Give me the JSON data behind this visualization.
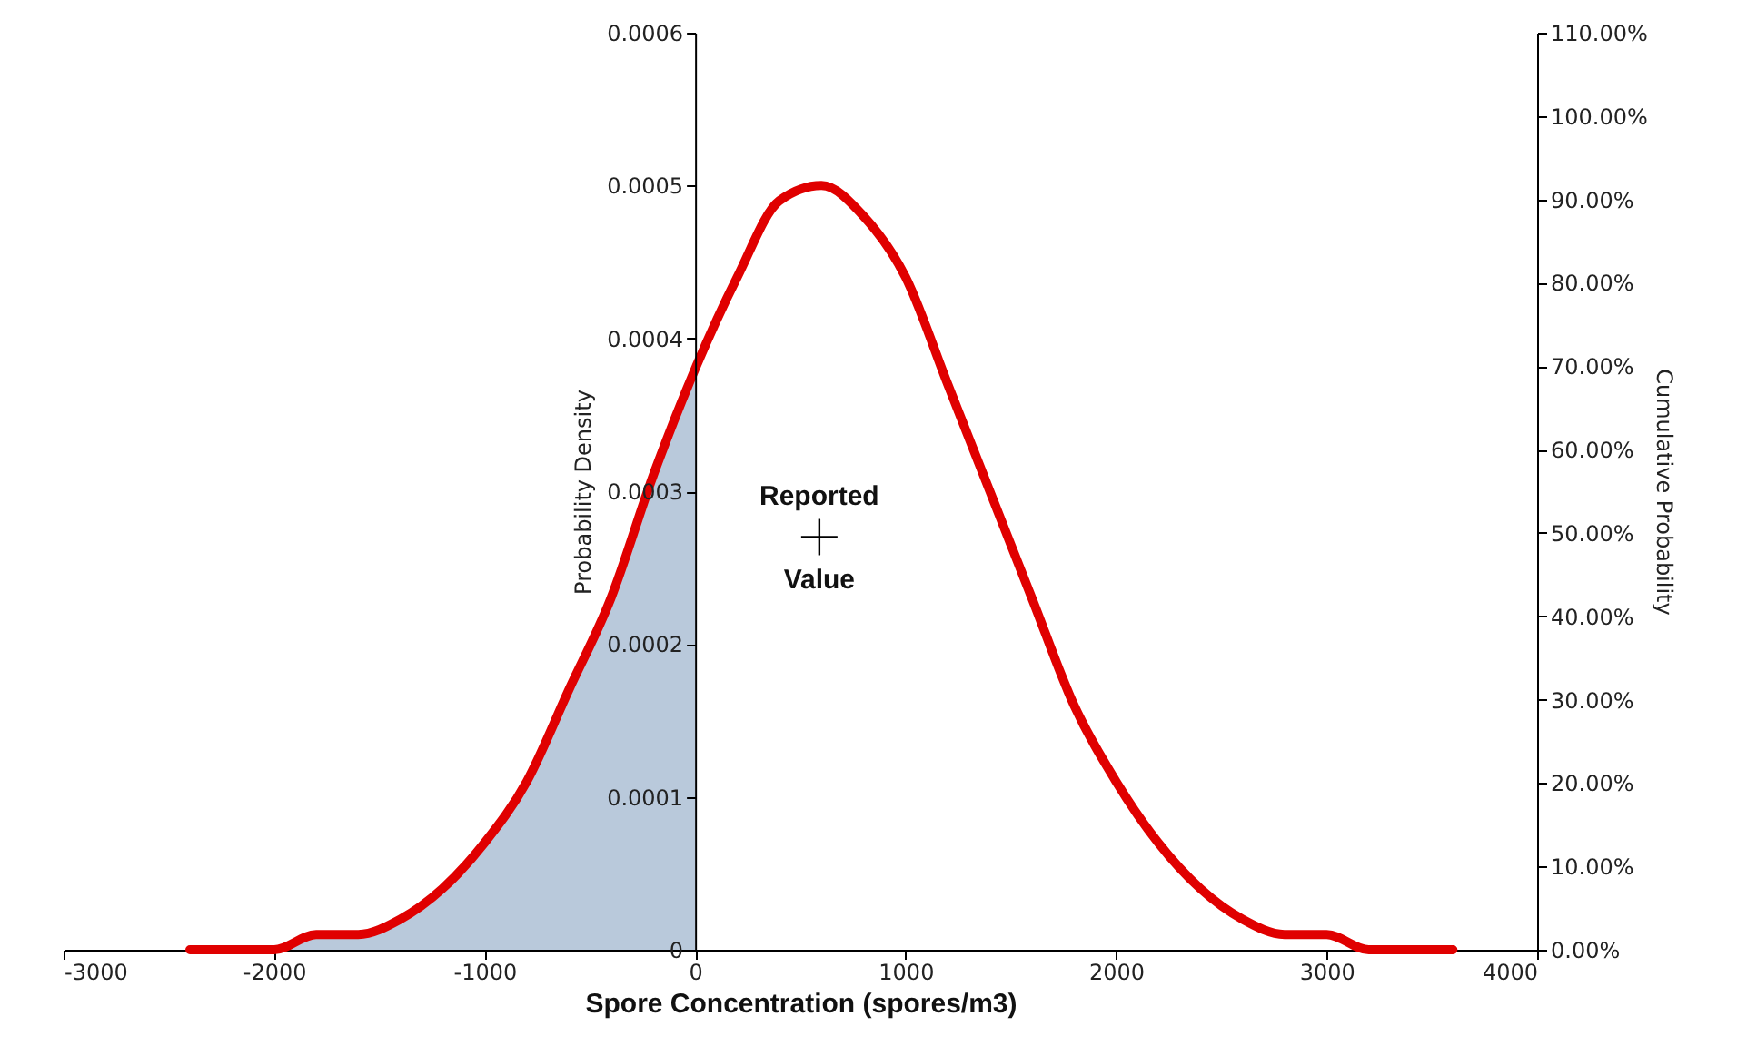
{
  "chart_data": {
    "type": "line",
    "xlabel": "Spore Concentration (spores/m3)",
    "ylabel": "Probability Density",
    "y2label": "Cumulative Probability",
    "xlim": [
      -3000,
      4000
    ],
    "xticks": [
      -3000,
      -2000,
      -1000,
      0,
      1000,
      2000,
      3000,
      4000
    ],
    "ylim": [
      0,
      0.0006
    ],
    "yticks": [
      0,
      0.0001,
      0.0002,
      0.0003,
      0.0004,
      0.0005,
      0.0006
    ],
    "y2lim": [
      0,
      110
    ],
    "y2ticks": [
      {
        "value": 0,
        "label": "0.00%"
      },
      {
        "value": 10,
        "label": "10.00%"
      },
      {
        "value": 20,
        "label": "20.00%"
      },
      {
        "value": 30,
        "label": "30.00%"
      },
      {
        "value": 40,
        "label": "40.00%"
      },
      {
        "value": 50,
        "label": "50.00%"
      },
      {
        "value": 60,
        "label": "60.00%"
      },
      {
        "value": 70,
        "label": "70.00%"
      },
      {
        "value": 80,
        "label": "80.00%"
      },
      {
        "value": 90,
        "label": "90.00%"
      },
      {
        "value": 100,
        "label": "100.00%"
      },
      {
        "value": 110,
        "label": "110.00%"
      }
    ],
    "series": [
      {
        "type": "area",
        "color": "#b9c9db",
        "x": [
          -2400,
          -2200,
          -2000,
          -1800,
          -1600,
          -1400,
          -1200,
          -1000,
          -800,
          -600,
          -400,
          -200,
          0
        ],
        "values": [
          0,
          0,
          0,
          1e-05,
          1e-05,
          2e-05,
          4e-05,
          7e-05,
          0.00011,
          0.00017,
          0.00023,
          0.00031,
          0.00038
        ]
      },
      {
        "color": "#e00000",
        "x": [
          -2400,
          -2200,
          -2000,
          -1800,
          -1600,
          -1400,
          -1200,
          -1000,
          -800,
          -600,
          -400,
          -200,
          0,
          200,
          400,
          600,
          800,
          1000,
          1200,
          1400,
          1600,
          1800,
          2000,
          2200,
          2400,
          2600,
          2800,
          3000,
          3200,
          3400,
          3600
        ],
        "values": [
          0,
          0,
          0,
          1e-05,
          1e-05,
          2e-05,
          4e-05,
          7e-05,
          0.00011,
          0.00017,
          0.00023,
          0.00031,
          0.00038,
          0.00044,
          0.00049,
          0.0005,
          0.00048,
          0.00044,
          0.00037,
          0.0003,
          0.00023,
          0.00016,
          0.00011,
          7e-05,
          4e-05,
          2e-05,
          1e-05,
          1e-05,
          0,
          0,
          0
        ]
      },
      {
        "type": "scatter",
        "marker": "cross",
        "color": "#000000",
        "x": [
          590
        ],
        "values": [
          0.00027
        ]
      }
    ],
    "annotations": [
      "Reported Value"
    ]
  }
}
